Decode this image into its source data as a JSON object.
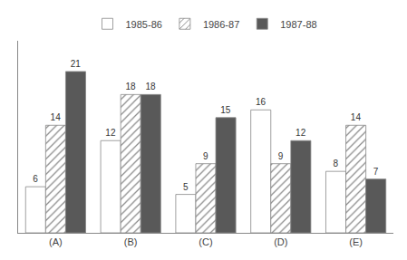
{
  "chart_data": {
    "type": "bar",
    "categories": [
      "(A)",
      "(B)",
      "(C)",
      "(D)",
      "(E)"
    ],
    "series": [
      {
        "name": "1985-86",
        "color": "#ffffff",
        "values": [
          6,
          12,
          5,
          16,
          8
        ]
      },
      {
        "name": "1986-87",
        "color": "#ffffff",
        "marker": "hatch",
        "values": [
          14,
          18,
          9,
          9,
          14
        ]
      },
      {
        "name": "1987-88",
        "color": "#595959",
        "values": [
          21,
          18,
          15,
          12,
          7
        ]
      }
    ],
    "ylim": [
      0,
      25
    ],
    "yticks": [],
    "grid": false,
    "legend": "top",
    "data_labels": true,
    "tick_labels": "x"
  }
}
